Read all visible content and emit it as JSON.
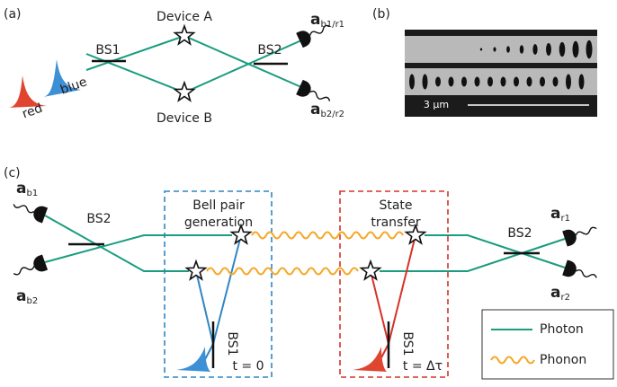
{
  "panel_a": {
    "label": "(a)",
    "device_a": "Device A",
    "device_b": "Device B",
    "bs1": "BS1",
    "bs2": "BS2",
    "pulse_red": "red",
    "pulse_blue": "blue",
    "output_top": {
      "symbol": "a",
      "subscript": "b1/r1"
    },
    "output_bottom": {
      "symbol": "a",
      "subscript": "b2/r2"
    }
  },
  "panel_b": {
    "label": "(b)",
    "scale_bar": "3 μm"
  },
  "panel_c": {
    "label": "(c)",
    "left": {
      "bs2": "BS2",
      "output_top": {
        "symbol": "a",
        "subscript": "b1"
      },
      "output_bottom": {
        "symbol": "a",
        "subscript": "b2"
      }
    },
    "bell_box": {
      "title": [
        "Bell pair",
        "generation"
      ],
      "bs1": "BS1",
      "time": "t = 0"
    },
    "transfer_box": {
      "title": [
        "State",
        "transfer"
      ],
      "bs1": "BS1",
      "time": "t = Δτ"
    },
    "right": {
      "bs2": "BS2",
      "output_top": {
        "symbol": "a",
        "subscript": "r1"
      },
      "output_bottom": {
        "symbol": "a",
        "subscript": "r2"
      }
    },
    "legend": {
      "photon": "Photon",
      "phonon": "Phonon"
    }
  }
}
